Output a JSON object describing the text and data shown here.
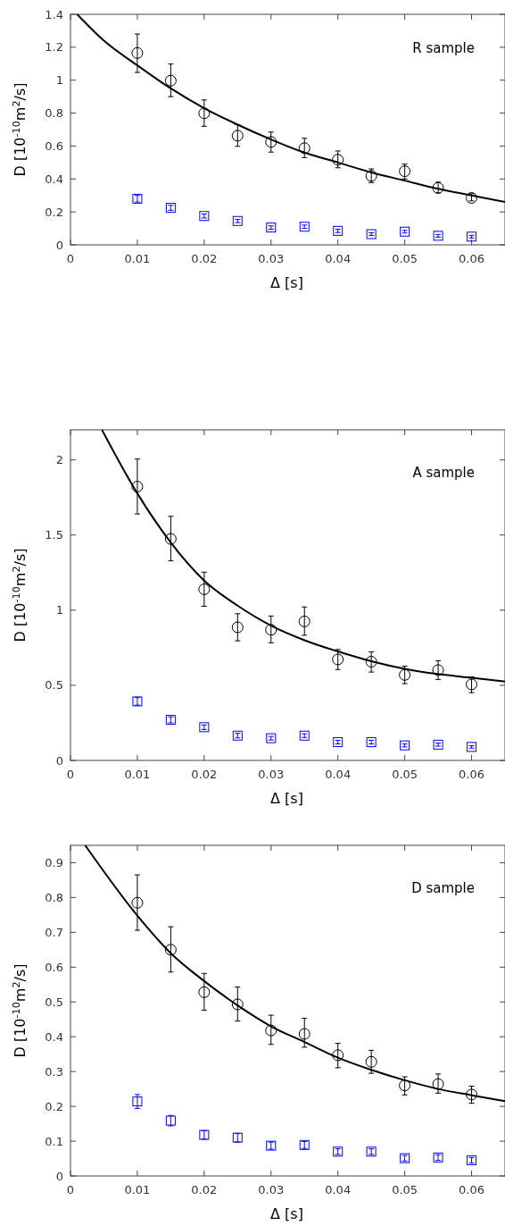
{
  "chart_data": [
    {
      "type": "scatter",
      "title": "R sample",
      "xlabel": "Δ [s]",
      "ylabel": "D [10$^{-10}$m$^{2}$/s]",
      "xlim": [
        0,
        0.065
      ],
      "xticks": [
        0,
        0.01,
        0.02,
        0.03,
        0.04,
        0.05,
        0.06
      ],
      "ylim": [
        0,
        1.4
      ],
      "yticks": [
        0,
        0.2,
        0.4,
        0.6,
        0.8,
        1,
        1.2,
        1.4
      ],
      "grid": false,
      "x": [
        0.01,
        0.015,
        0.02,
        0.025,
        0.03,
        0.035,
        0.04,
        0.045,
        0.05,
        0.055,
        0.06
      ],
      "series": [
        {
          "color": "#000000",
          "marker": "circle",
          "values": [
            1.165,
            0.997,
            0.799,
            0.663,
            0.625,
            0.587,
            0.517,
            0.419,
            0.447,
            0.346,
            0.285
          ],
          "errors": [
            [
              1.047,
              1.28
            ],
            [
              0.9,
              1.098
            ],
            [
              0.72,
              0.88
            ],
            [
              0.598,
              0.73
            ],
            [
              0.563,
              0.685
            ],
            [
              0.53,
              0.647
            ],
            [
              0.468,
              0.57
            ],
            [
              0.378,
              0.461
            ],
            [
              0.4,
              0.49
            ],
            [
              0.315,
              0.381
            ],
            [
              0.267,
              0.31
            ]
          ]
        },
        {
          "color": "#0000ff",
          "marker": "square",
          "values": [
            0.28,
            0.225,
            0.175,
            0.145,
            0.105,
            0.11,
            0.085,
            0.065,
            0.08,
            0.055,
            0.05
          ],
          "errors": [
            0.02,
            0.015,
            0.012,
            0.01,
            0.01,
            0.01,
            0.01,
            0.008,
            0.008,
            0.008,
            0.008
          ]
        },
        {
          "type": "line",
          "color": "#000000",
          "marker": "none",
          "x": [
            0.001,
            0.005,
            0.01,
            0.015,
            0.02,
            0.025,
            0.03,
            0.035,
            0.04,
            0.045,
            0.05,
            0.055,
            0.06,
            0.065
          ],
          "values": [
            1.4,
            1.24,
            1.09,
            0.95,
            0.83,
            0.73,
            0.64,
            0.56,
            0.5,
            0.44,
            0.39,
            0.34,
            0.3,
            0.26
          ]
        }
      ]
    },
    {
      "type": "scatter",
      "title": "A sample",
      "xlabel": "Δ [s]",
      "ylabel": "D [10$^{-10}$m$^{2}$/s]",
      "xlim": [
        0,
        0.065
      ],
      "xticks": [
        0,
        0.01,
        0.02,
        0.03,
        0.04,
        0.05,
        0.06
      ],
      "ylim": [
        0,
        2.2
      ],
      "yticks": [
        0,
        0.5,
        1,
        1.5,
        2
      ],
      "grid": false,
      "x": [
        0.01,
        0.015,
        0.02,
        0.025,
        0.03,
        0.035,
        0.04,
        0.045,
        0.05,
        0.055,
        0.06
      ],
      "series": [
        {
          "color": "#000000",
          "marker": "circle",
          "values": [
            1.822,
            1.474,
            1.139,
            0.886,
            0.869,
            0.925,
            0.672,
            0.657,
            0.569,
            0.601,
            0.506
          ],
          "errors": [
            [
              1.64,
              2.006
            ],
            [
              1.328,
              1.624
            ],
            [
              1.026,
              1.253
            ],
            [
              0.796,
              0.976
            ],
            [
              0.783,
              0.961
            ],
            [
              0.833,
              1.021
            ],
            [
              0.605,
              0.738
            ],
            [
              0.588,
              0.723
            ],
            [
              0.511,
              0.627
            ],
            [
              0.539,
              0.663
            ],
            [
              0.451,
              0.556
            ]
          ]
        },
        {
          "color": "#0000ff",
          "marker": "square",
          "values": [
            0.393,
            0.27,
            0.221,
            0.165,
            0.148,
            0.165,
            0.122,
            0.122,
            0.1,
            0.105,
            0.09
          ],
          "errors": [
            0.025,
            0.02,
            0.015,
            0.015,
            0.012,
            0.012,
            0.012,
            0.012,
            0.01,
            0.01,
            0.008
          ]
        },
        {
          "type": "line",
          "color": "#000000",
          "marker": "none",
          "x": [
            0.0047,
            0.01,
            0.015,
            0.02,
            0.025,
            0.03,
            0.035,
            0.04,
            0.045,
            0.05,
            0.055,
            0.06,
            0.065
          ],
          "values": [
            2.2,
            1.777,
            1.45,
            1.197,
            1.03,
            0.897,
            0.8,
            0.725,
            0.66,
            0.61,
            0.575,
            0.55,
            0.525
          ]
        }
      ]
    },
    {
      "type": "scatter",
      "title": "D sample",
      "xlabel": "Δ [s]",
      "ylabel": "D [10$^{-10}$m$^{2}$/s]",
      "xlim": [
        0,
        0.065
      ],
      "xticks": [
        0,
        0.01,
        0.02,
        0.03,
        0.04,
        0.05,
        0.06
      ],
      "ylim": [
        0,
        0.95
      ],
      "yticks": [
        0,
        0.1,
        0.2,
        0.3,
        0.4,
        0.5,
        0.6,
        0.7,
        0.8,
        0.9
      ],
      "grid": false,
      "x": [
        0.01,
        0.015,
        0.02,
        0.025,
        0.03,
        0.035,
        0.04,
        0.045,
        0.05,
        0.055,
        0.06
      ],
      "series": [
        {
          "color": "#000000",
          "marker": "circle",
          "values": [
            0.785,
            0.65,
            0.528,
            0.493,
            0.418,
            0.408,
            0.347,
            0.328,
            0.26,
            0.264,
            0.234
          ],
          "errors": [
            [
              0.706,
              0.865
            ],
            [
              0.586,
              0.716
            ],
            [
              0.476,
              0.582
            ],
            [
              0.445,
              0.543
            ],
            [
              0.378,
              0.462
            ],
            [
              0.37,
              0.453
            ],
            [
              0.311,
              0.381
            ],
            [
              0.295,
              0.361
            ],
            [
              0.233,
              0.285
            ],
            [
              0.238,
              0.293
            ],
            [
              0.209,
              0.258
            ]
          ]
        },
        {
          "color": "#0000ff",
          "marker": "square",
          "values": [
            0.214,
            0.159,
            0.118,
            0.11,
            0.087,
            0.089,
            0.07,
            0.07,
            0.051,
            0.053,
            0.045
          ],
          "errors": [
            0.02,
            0.015,
            0.012,
            0.012,
            0.01,
            0.01,
            0.008,
            0.008,
            0.008,
            0.008,
            0.008
          ]
        },
        {
          "type": "line",
          "color": "#000000",
          "marker": "none",
          "x": [
            0.0022,
            0.01,
            0.015,
            0.02,
            0.025,
            0.03,
            0.035,
            0.04,
            0.045,
            0.05,
            0.055,
            0.06,
            0.065
          ],
          "values": [
            0.95,
            0.748,
            0.64,
            0.56,
            0.49,
            0.43,
            0.385,
            0.34,
            0.305,
            0.275,
            0.25,
            0.232,
            0.215
          ]
        }
      ]
    }
  ]
}
